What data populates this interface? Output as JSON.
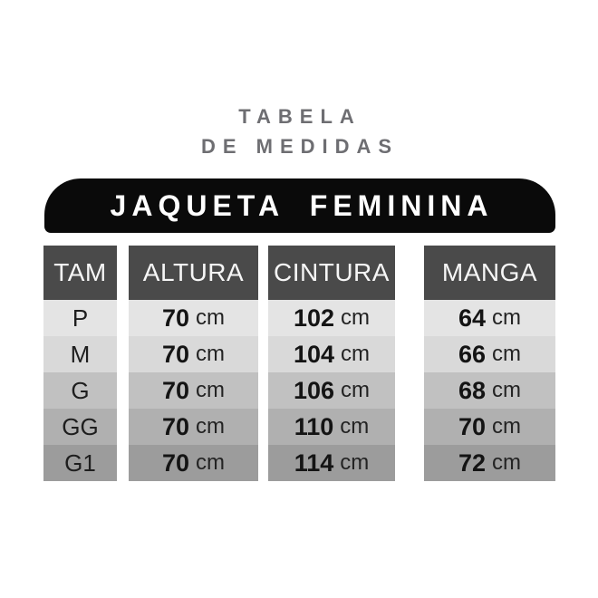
{
  "colors": {
    "background": "#ffffff",
    "title_text": "#6e6e72",
    "banner_bg": "#0a0a0a",
    "banner_text": "#ffffff",
    "header_bg": "#4a4a4a",
    "header_text": "#f6f6f6",
    "cell_text": "#1e1e1e",
    "row_shades": [
      "#e4e4e4",
      "#d9d9d9",
      "#c1c1c1",
      "#b0b0b0",
      "#9c9c9c"
    ]
  },
  "chart_data": {
    "type": "table",
    "title": "TABELA DE MEDIDAS",
    "title_lines": [
      "TABELA",
      "DE MEDIDAS"
    ],
    "banner": "JAQUETA FEMININA",
    "unit": "cm",
    "columns": [
      "TAM",
      "ALTURA",
      "CINTURA",
      "MANGA"
    ],
    "sizes": [
      "P",
      "M",
      "G",
      "GG",
      "G1"
    ],
    "altura": [
      "70",
      "70",
      "70",
      "70",
      "70"
    ],
    "cintura": [
      "102",
      "104",
      "106",
      "110",
      "114"
    ],
    "manga": [
      "64",
      "66",
      "68",
      "70",
      "72"
    ]
  }
}
